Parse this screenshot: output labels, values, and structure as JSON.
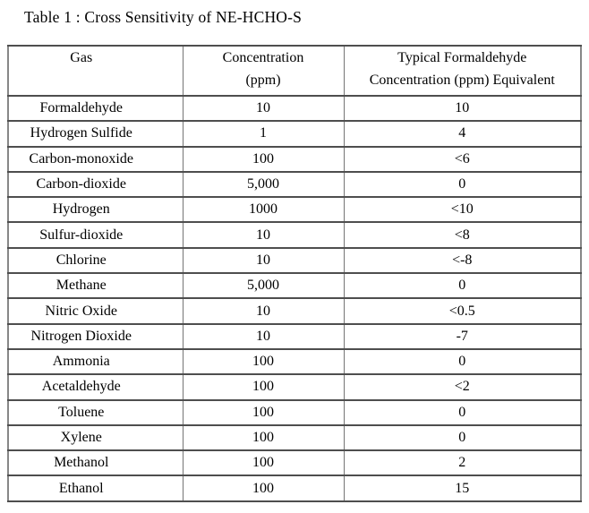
{
  "title": "Table 1 : Cross Sensitivity of NE-HCHO-S",
  "table": {
    "headers": [
      {
        "line1": "Gas",
        "line2": ""
      },
      {
        "line1": "Concentration",
        "line2": "(ppm)"
      },
      {
        "line1": "Typical Formaldehyde",
        "line2": "Concentration (ppm) Equivalent"
      }
    ],
    "rows": [
      [
        "Formaldehyde",
        "10",
        "10"
      ],
      [
        "Hydrogen Sulfide",
        "1",
        "4"
      ],
      [
        "Carbon-monoxide",
        "100",
        "<6"
      ],
      [
        "Carbon-dioxide",
        "5,000",
        "0"
      ],
      [
        "Hydrogen",
        "1000",
        "<10"
      ],
      [
        "Sulfur-dioxide",
        "10",
        "<8"
      ],
      [
        "Chlorine",
        "10",
        "<-8"
      ],
      [
        "Methane",
        "5,000",
        "0"
      ],
      [
        "Nitric Oxide",
        "10",
        "<0.5"
      ],
      [
        "Nitrogen Dioxide",
        "10",
        "-7"
      ],
      [
        "Ammonia",
        "100",
        "0"
      ],
      [
        "Acetaldehyde",
        "100",
        "<2"
      ],
      [
        "Toluene",
        "100",
        "0"
      ],
      [
        "Xylene",
        "100",
        "0"
      ],
      [
        "Methanol",
        "100",
        "2"
      ],
      [
        "Ethanol",
        "100",
        "15"
      ]
    ]
  }
}
